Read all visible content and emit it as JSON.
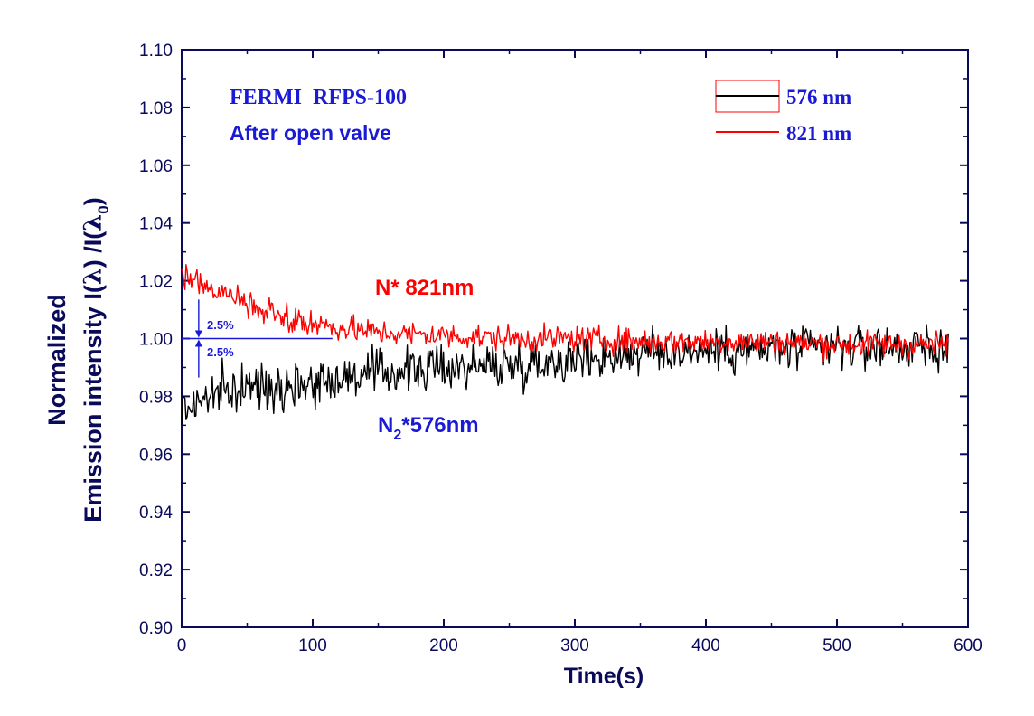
{
  "chart_data": {
    "type": "line",
    "xlabel": "Time(s)",
    "ylabel": {
      "line1": "Normalized",
      "line2": "Emission intensity I(",
      "lambda": "λ",
      "mid": ") /I(",
      "sub": "0",
      "end": ")"
    },
    "xlim": [
      0,
      600
    ],
    "ylim": [
      0.9,
      1.1
    ],
    "x_ticks": [
      "0",
      "100",
      "200",
      "300",
      "400",
      "500",
      "600"
    ],
    "y_ticks": [
      "0.90",
      "0.92",
      "0.94",
      "0.96",
      "0.98",
      "1.00",
      "1.02",
      "1.04",
      "1.06",
      "1.08",
      "1.10"
    ],
    "grid": false,
    "legend_position": "top-right",
    "series": [
      {
        "name": "576 nm",
        "color": "#000000",
        "trend_x": [
          0,
          20,
          50,
          100,
          150,
          200,
          250,
          300,
          350,
          400,
          450,
          500,
          585
        ],
        "trend_y": [
          0.975,
          0.98,
          0.983,
          0.985,
          0.988,
          0.99,
          0.991,
          0.993,
          0.995,
          0.996,
          0.996,
          0.997,
          0.997
        ],
        "noise": 0.007,
        "x_start": 0,
        "x_end": 585
      },
      {
        "name": "821 nm",
        "color": "#ff0000",
        "trend_x": [
          0,
          10,
          30,
          60,
          100,
          150,
          200,
          250,
          300,
          350,
          400,
          450,
          500,
          585
        ],
        "trend_y": [
          1.023,
          1.02,
          1.016,
          1.01,
          1.005,
          1.002,
          1.001,
          1.0,
          1.0,
          0.999,
          0.999,
          0.999,
          0.998,
          0.998
        ],
        "noise": 0.004,
        "x_start": 0,
        "x_end": 585
      }
    ],
    "annotations": {
      "title_line1": "FERMI  RFPS-100",
      "title_line2": "After open valve",
      "label_821": "N* 821nm",
      "label_576_main": "N",
      "label_576_sub": "2",
      "label_576_tail": "*576nm",
      "pct_upper": "2.5%",
      "pct_lower": "2.5%",
      "reference_y": 1.0,
      "arrow_upper_y": 1.0135,
      "arrow_lower_y": 0.9865,
      "arrow_x": 13
    }
  }
}
